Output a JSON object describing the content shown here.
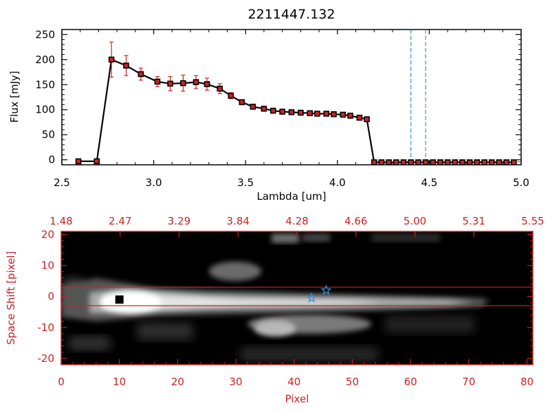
{
  "chart_data": [
    {
      "type": "line",
      "title": "2211447.132",
      "xlabel": "Lambda [um]",
      "ylabel": "Flux [mJy]",
      "xlim": [
        2.5,
        5.0
      ],
      "ylim": [
        -10,
        260
      ],
      "x_ticks": [
        "2.5",
        "3.0",
        "3.5",
        "4.0",
        "4.5",
        "5.0"
      ],
      "y_ticks": [
        "0",
        "50",
        "100",
        "150",
        "200",
        "250"
      ],
      "series": [
        {
          "marker": "square",
          "line_color": "#000000",
          "marker_color": "#cc2222",
          "error_color": "#cc2222",
          "x": [
            2.59,
            2.69,
            2.77,
            2.85,
            2.93,
            3.02,
            3.09,
            3.16,
            3.23,
            3.29,
            3.36,
            3.42,
            3.48,
            3.54,
            3.6,
            3.65,
            3.7,
            3.75,
            3.8,
            3.85,
            3.89,
            3.94,
            3.98,
            4.03,
            4.07,
            4.12,
            4.16,
            4.2,
            4.24,
            4.28,
            4.32,
            4.36,
            4.4,
            4.44,
            4.48,
            4.52,
            4.56,
            4.6,
            4.64,
            4.68,
            4.72,
            4.76,
            4.8,
            4.84,
            4.88,
            4.92,
            4.96
          ],
          "y": [
            -3,
            -3,
            200,
            188,
            171,
            156,
            152,
            153,
            155,
            151,
            142,
            128,
            115,
            106,
            102,
            98,
            96,
            95,
            94,
            93,
            92,
            92,
            91,
            90,
            88,
            84,
            81,
            -5,
            -5,
            -5,
            -5,
            -5,
            -5,
            -5,
            -5,
            -5,
            -5,
            -5,
            -5,
            -5,
            -5,
            -5,
            -5,
            -5,
            -5,
            -5,
            -5
          ],
          "err": [
            0,
            0,
            35,
            20,
            12,
            10,
            14,
            16,
            13,
            12,
            10,
            6,
            5,
            4,
            4,
            3,
            3,
            3,
            3,
            3,
            3,
            3,
            3,
            3,
            3,
            4,
            4,
            0,
            0,
            0,
            0,
            0,
            0,
            0,
            0,
            0,
            0,
            0,
            0,
            0,
            0,
            0,
            0,
            0,
            0,
            0,
            0
          ]
        }
      ],
      "vlines": {
        "x": [
          4.4,
          4.48
        ],
        "color": "#3a8fd0",
        "style": "dashed"
      },
      "baseline_color": "#cc2222"
    },
    {
      "type": "heatmap",
      "xlabel": "Pixel",
      "ylabel": "Space Shift [pixel]",
      "xlim": [
        0,
        81
      ],
      "ylim": [
        -22,
        21
      ],
      "x_ticks": [
        "0",
        "10",
        "20",
        "30",
        "40",
        "50",
        "60",
        "70",
        "80"
      ],
      "y_ticks": [
        "-20",
        "-10",
        "0",
        "10",
        "20"
      ],
      "top_ticks": [
        "1.48",
        "2.47",
        "3.29",
        "3.84",
        "4.28",
        "4.66",
        "5.00",
        "5.31",
        "5.55"
      ],
      "hlines": {
        "y": [
          3,
          -3
        ],
        "color": "#cc2222"
      },
      "stars": {
        "points": [
          [
            43,
            -0.5
          ],
          [
            45.5,
            2
          ]
        ],
        "color": "#3a8fd0"
      },
      "dark_spot": {
        "x": 10,
        "y": -1
      },
      "colors": {
        "axis": "#cc2222",
        "background": "#000000"
      }
    }
  ]
}
